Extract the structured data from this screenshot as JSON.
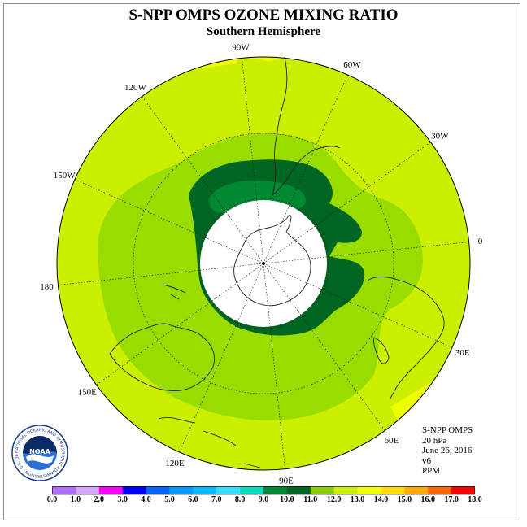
{
  "title": "S-NPP OMPS OZONE MIXING RATIO",
  "subtitle": "Southern Hemisphere",
  "longitude_labels": [
    "90W",
    "60W",
    "30W",
    "0",
    "30E",
    "60E",
    "90E",
    "120E",
    "150E",
    "180",
    "150W",
    "120W"
  ],
  "info": {
    "instrument": "S-NPP OMPS",
    "level": "20 hPa",
    "date": "June 26, 2016",
    "version": "v6",
    "units": "PPM"
  },
  "logo": {
    "text": "NOAA",
    "ring_text": "NATIONAL OCEANIC AND ATMOSPHERIC ADMINISTRATION · U.S. DEPARTMENT OF COMMERCE"
  },
  "colorbar": {
    "labels": [
      "0.0",
      "1.0",
      "2.0",
      "3.0",
      "4.0",
      "5.0",
      "6.0",
      "7.0",
      "8.0",
      "9.0",
      "10.0",
      "11.0",
      "12.0",
      "13.0",
      "14.0",
      "15.0",
      "16.0",
      "17.0",
      "18.0"
    ],
    "colors": [
      "#b26bff",
      "#d9a6ff",
      "#ff00ff",
      "#0000ff",
      "#0066ff",
      "#0099ff",
      "#00bbff",
      "#33ddff",
      "#00ddbb",
      "#008833",
      "#006622",
      "#88cc00",
      "#ccee00",
      "#eeff00",
      "#ffdd00",
      "#ffaa00",
      "#ff6600",
      "#ff0000",
      "#996644"
    ]
  },
  "field_colors": {
    "ocean_high": "#eeff00",
    "level_12": "#ccee00",
    "level_11": "#99dd00",
    "level_10": "#88cc00",
    "level_9": "#006622",
    "level_8": "#008833",
    "missing": "#ffffff"
  }
}
